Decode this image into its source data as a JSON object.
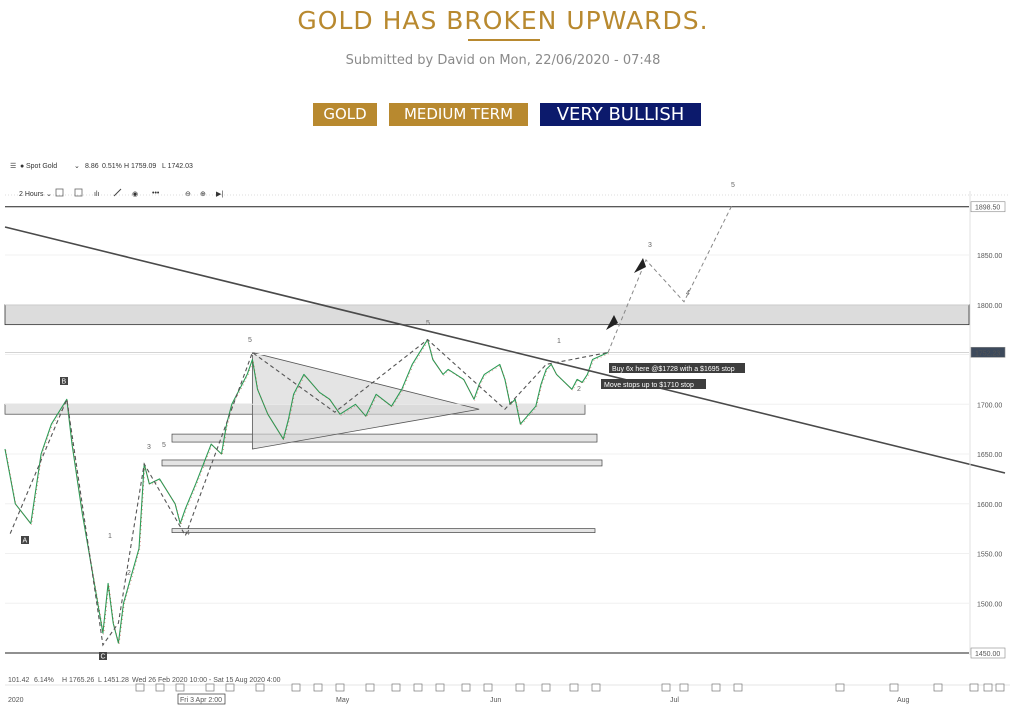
{
  "article": {
    "title": "GOLD HAS BROKEN UPWARDS.",
    "submitted": "Submitted by David on Mon, 22/06/2020 - 07:48",
    "tags": [
      "GOLD",
      "MEDIUM TERM",
      "VERY BULLISH"
    ]
  },
  "colors": {
    "gold": "#b8892f",
    "navy": "#0c1a6c"
  },
  "chart_data": {
    "type": "line",
    "legend": {
      "symbol": "Spot Gold",
      "change": "8.86",
      "change_pct": "0.51%",
      "high": "H 1759.09",
      "low": "L 1742.03"
    },
    "toolbar": {
      "interval": "2 Hours"
    },
    "ylim": [
      1450,
      1900
    ],
    "yticks": [
      "1850.00",
      "1800.00",
      "1750.00",
      "1700.00",
      "1650.00",
      "1600.00",
      "1550.00",
      "1500.00"
    ],
    "y_flags": [
      {
        "label": "1898.50",
        "value": 1898.5,
        "dark": false
      },
      {
        "label": "1752.23",
        "value": 1752.23,
        "dark": true
      },
      {
        "label": "1450.00",
        "value": 1450,
        "dark": false
      }
    ],
    "xticks": [
      "2020",
      "Fri 3 Apr 2:00",
      "May",
      "Jun",
      "Jul",
      "Aug"
    ],
    "footer": {
      "a": "101.42",
      "b": "6.14%",
      "c": "H 1765.26",
      "d": "L 1451.28",
      "range": "Wed 26 Feb 2020 10:00 - Sat 15 Aug 2020 4:00"
    },
    "series": [
      {
        "points": [
          [
            "2020-02-26",
            1655
          ],
          [
            "2020-02-28",
            1600
          ],
          [
            "2020-03-02",
            1580
          ],
          [
            "2020-03-04",
            1650
          ],
          [
            "2020-03-06",
            1680
          ],
          [
            "2020-03-09",
            1705
          ],
          [
            "2020-03-10",
            1660
          ],
          [
            "2020-03-12",
            1590
          ],
          [
            "2020-03-13",
            1560
          ],
          [
            "2020-03-16",
            1470
          ],
          [
            "2020-03-17",
            1520
          ],
          [
            "2020-03-18",
            1480
          ],
          [
            "2020-03-19",
            1460
          ],
          [
            "2020-03-20",
            1500
          ],
          [
            "2020-03-23",
            1555
          ],
          [
            "2020-03-24",
            1640
          ],
          [
            "2020-03-25",
            1620
          ],
          [
            "2020-03-27",
            1625
          ],
          [
            "2020-03-30",
            1600
          ],
          [
            "2020-03-31",
            1580
          ],
          [
            "2020-04-01",
            1595
          ],
          [
            "2020-04-03",
            1620
          ],
          [
            "2020-04-06",
            1660
          ],
          [
            "2020-04-08",
            1650
          ],
          [
            "2020-04-09",
            1680
          ],
          [
            "2020-04-10",
            1700
          ],
          [
            "2020-04-13",
            1730
          ],
          [
            "2020-04-14",
            1745
          ],
          [
            "2020-04-15",
            1715
          ],
          [
            "2020-04-17",
            1690
          ],
          [
            "2020-04-20",
            1665
          ],
          [
            "2020-04-21",
            1685
          ],
          [
            "2020-04-22",
            1710
          ],
          [
            "2020-04-24",
            1730
          ],
          [
            "2020-04-27",
            1712
          ],
          [
            "2020-04-29",
            1705
          ],
          [
            "2020-05-01",
            1690
          ],
          [
            "2020-05-04",
            1700
          ],
          [
            "2020-05-06",
            1688
          ],
          [
            "2020-05-08",
            1710
          ],
          [
            "2020-05-11",
            1698
          ],
          [
            "2020-05-13",
            1715
          ],
          [
            "2020-05-15",
            1740
          ],
          [
            "2020-05-18",
            1765
          ],
          [
            "2020-05-19",
            1745
          ],
          [
            "2020-05-21",
            1730
          ],
          [
            "2020-05-22",
            1735
          ],
          [
            "2020-05-25",
            1725
          ],
          [
            "2020-05-27",
            1705
          ],
          [
            "2020-05-28",
            1720
          ],
          [
            "2020-05-29",
            1730
          ],
          [
            "2020-06-01",
            1740
          ],
          [
            "2020-06-02",
            1725
          ],
          [
            "2020-06-03",
            1700
          ],
          [
            "2020-06-04",
            1705
          ],
          [
            "2020-06-05",
            1680
          ],
          [
            "2020-06-08",
            1698
          ],
          [
            "2020-06-09",
            1720
          ],
          [
            "2020-06-10",
            1735
          ],
          [
            "2020-06-11",
            1740
          ],
          [
            "2020-06-12",
            1730
          ],
          [
            "2020-06-15",
            1715
          ],
          [
            "2020-06-16",
            1725
          ],
          [
            "2020-06-17",
            1722
          ],
          [
            "2020-06-18",
            1730
          ],
          [
            "2020-06-19",
            1745
          ],
          [
            "2020-06-22",
            1752
          ]
        ]
      }
    ],
    "wave_labels": [
      "A",
      "B",
      "C",
      "1",
      "2",
      "3",
      "4",
      "5"
    ],
    "annotations": [
      "Buy 6x here @$1728 with a $1695 stop",
      "Move stops up to $1710 stop"
    ],
    "grid": true
  }
}
